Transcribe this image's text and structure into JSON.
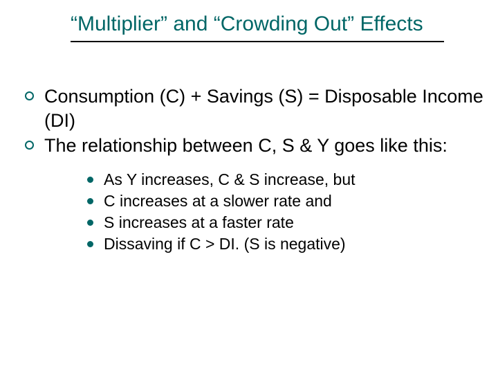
{
  "colors": {
    "title": "#006666",
    "bullet_ring": "#006666",
    "bullet_dot": "#006666",
    "text": "#000000",
    "rule": "#000000",
    "background": "#ffffff"
  },
  "typography": {
    "title_fontsize": 30,
    "body_fontsize": 27,
    "sub_fontsize": 23,
    "title_family": "Arial",
    "body_family": "Verdana"
  },
  "title": "“Multiplier” and “Crowding Out” Effects",
  "bullets": [
    {
      "text": "Consumption (C) + Savings (S) = Disposable Income (DI)"
    },
    {
      "text": "The relationship between C, S & Y goes like this:",
      "children": [
        "As Y increases, C & S increase, but",
        "C increases at a slower rate and",
        "S increases at a faster rate",
        "Dissaving if C > DI. (S is negative)"
      ]
    }
  ]
}
